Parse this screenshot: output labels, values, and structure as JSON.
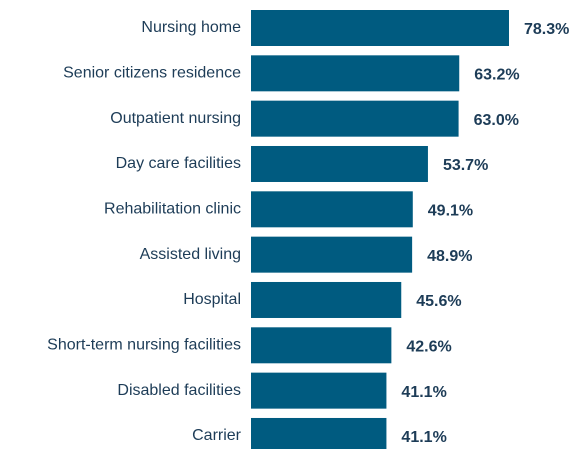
{
  "chart_data": {
    "type": "bar",
    "orientation": "horizontal",
    "categories": [
      "Nursing home",
      "Senior citizens residence",
      "Outpatient nursing",
      "Day care facilities",
      "Rehabilitation clinic",
      "Assisted living",
      "Hospital",
      "Short-term nursing facilities",
      "Disabled facilities",
      "Carrier"
    ],
    "values": [
      78.3,
      63.2,
      63.0,
      53.7,
      49.1,
      48.9,
      45.6,
      42.6,
      41.1,
      41.1
    ],
    "value_labels": [
      "78.3%",
      "63.2%",
      "63.0%",
      "53.7%",
      "49.1%",
      "48.9%",
      "45.6%",
      "42.6%",
      "41.1%",
      "41.1%"
    ],
    "color": "#005b80"
  }
}
